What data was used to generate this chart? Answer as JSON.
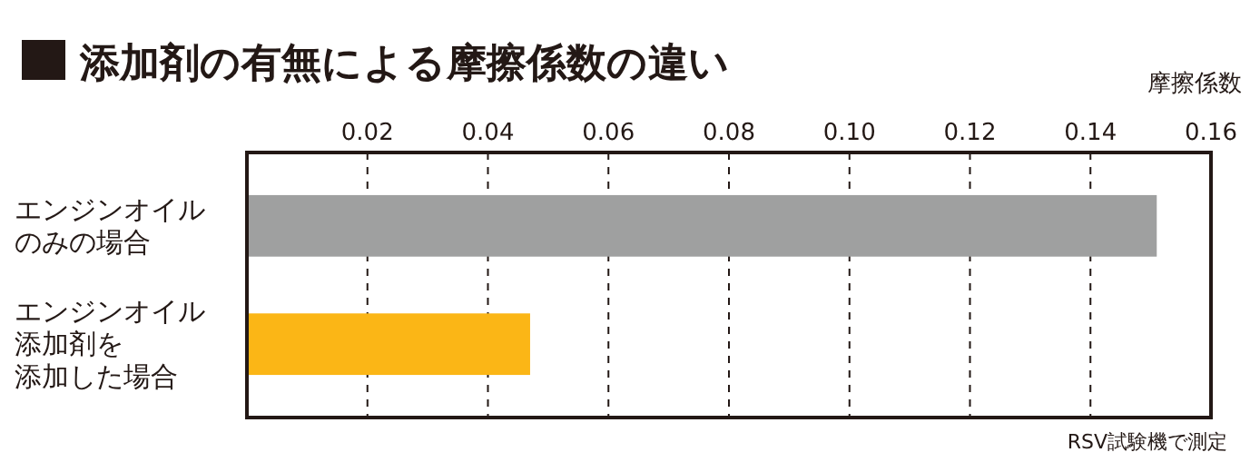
{
  "chart_data": {
    "type": "bar",
    "orientation": "horizontal",
    "title": "添加剤の有無による摩擦係数の違い",
    "xlabel": "摩擦係数",
    "categories": [
      "エンジンオイルのみの場合",
      "エンジンオイル添加剤を添加した場合"
    ],
    "values": [
      0.151,
      0.047
    ],
    "colors": [
      "#9fa0a0",
      "#fbb616"
    ],
    "xlim": [
      0,
      0.16
    ],
    "xticks": [
      0.02,
      0.04,
      0.06,
      0.08,
      {
        "value": 0.1,
        "label": "0.10"
      },
      0.12,
      0.14,
      0.16
    ],
    "grid": "x",
    "annotations": [
      "RSV試験機で測定"
    ]
  }
}
